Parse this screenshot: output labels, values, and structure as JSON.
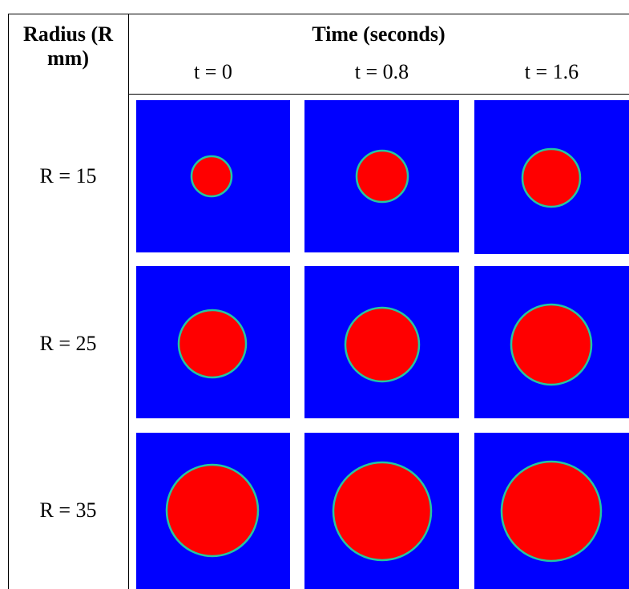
{
  "header": {
    "row_label": "Radius (R mm)",
    "group": "Time (seconds)",
    "columns": [
      "t = 0",
      "t = 0.8",
      "t = 1.6"
    ]
  },
  "rows": [
    {
      "label": "R = 15"
    },
    {
      "label": "R = 25"
    },
    {
      "label": "R = 35"
    }
  ]
}
